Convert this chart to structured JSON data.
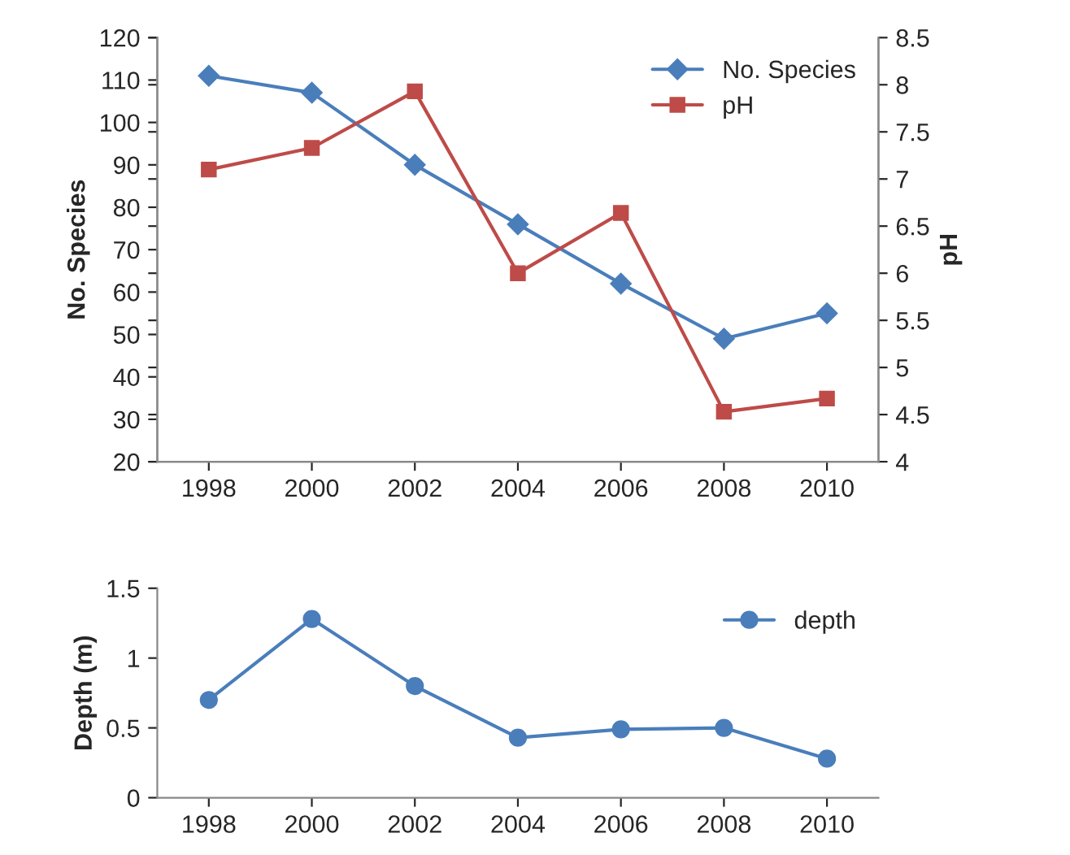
{
  "chart_data": [
    {
      "type": "line",
      "categories": [
        "1998",
        "2000",
        "2002",
        "2004",
        "2006",
        "2008",
        "2010"
      ],
      "ylabel": "No. Species",
      "y2label": "pH",
      "ylim": [
        20,
        120
      ],
      "yticks": [
        20,
        30,
        40,
        50,
        60,
        70,
        80,
        90,
        100,
        110,
        120
      ],
      "y2lim": [
        4,
        8.5
      ],
      "y2ticks": [
        4,
        4.5,
        5,
        5.5,
        6,
        6.5,
        7,
        7.5,
        8,
        8.5
      ],
      "legend": "top right",
      "grid": false,
      "series": [
        {
          "name": "No. Species",
          "color": "#4a7ebb",
          "marker": "diamond",
          "values": [
            111,
            107,
            90,
            76,
            62,
            49,
            55
          ]
        },
        {
          "name": "pH",
          "color": "#be4b48",
          "marker": "square",
          "axis": "y2",
          "values": [
            7.1,
            7.33,
            7.93,
            6.0,
            6.64,
            4.53,
            4.67
          ]
        }
      ]
    },
    {
      "type": "line",
      "categories": [
        "1998",
        "2000",
        "2002",
        "2004",
        "2006",
        "2008",
        "2010"
      ],
      "ylabel": "Depth (m)",
      "ylim": [
        0,
        1.5
      ],
      "yticks": [
        0,
        0.5,
        1,
        1.5
      ],
      "legend": "top right",
      "grid": false,
      "series": [
        {
          "name": "depth",
          "color": "#4a7ebb",
          "marker": "circle",
          "values": [
            0.7,
            1.28,
            0.8,
            0.43,
            0.49,
            0.5,
            0.28
          ]
        }
      ]
    }
  ]
}
